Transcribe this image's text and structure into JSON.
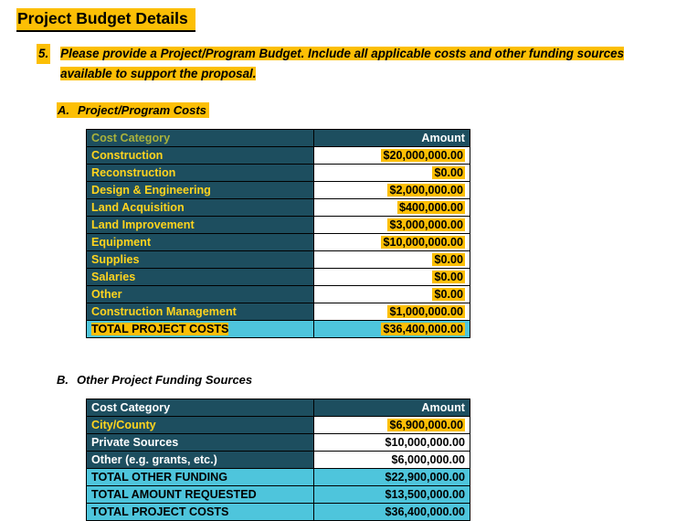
{
  "colors": {
    "highlight_gold": "#fcbf05",
    "dark_teal": "#1d4e5f",
    "total_cyan": "#4ec5dc",
    "label_yellow": "#ffd41e",
    "header_olive": "#a9b23c"
  },
  "page": {
    "title": "Project Budget Details"
  },
  "question": {
    "number": "5.",
    "text": "Please provide a Project/Program Budget. Include all applicable costs and other funding sources available to support the proposal."
  },
  "section_a": {
    "label": "A.",
    "title": "Project/Program Costs",
    "table": {
      "header_category": "Cost Category",
      "header_amount": "Amount",
      "rows": [
        {
          "category": "Construction",
          "amount": "$20,000,000.00"
        },
        {
          "category": "Reconstruction",
          "amount": "$0.00"
        },
        {
          "category": "Design & Engineering",
          "amount": "$2,000,000.00"
        },
        {
          "category": "Land Acquisition",
          "amount": "$400,000.00"
        },
        {
          "category": "Land Improvement",
          "amount": "$3,000,000.00"
        },
        {
          "category": "Equipment",
          "amount": "$10,000,000.00"
        },
        {
          "category": "Supplies",
          "amount": "$0.00"
        },
        {
          "category": "Salaries",
          "amount": "$0.00"
        },
        {
          "category": "Other",
          "amount": "$0.00"
        },
        {
          "category": "Construction Management",
          "amount": "$1,000,000.00"
        }
      ],
      "total": {
        "category": "TOTAL PROJECT COSTS",
        "amount": "$36,400,000.00"
      }
    }
  },
  "section_b": {
    "label": "B.",
    "title": "Other Project Funding Sources",
    "table": {
      "header_category": "Cost Category",
      "header_amount": "Amount",
      "rows": [
        {
          "category": "City/County",
          "amount": "$6,900,000.00"
        },
        {
          "category": "Private Sources",
          "amount": "$10,000,000.00"
        },
        {
          "category": "Other (e.g. grants, etc.)",
          "amount": "$6,000,000.00"
        }
      ],
      "totals": [
        {
          "category": "TOTAL OTHER FUNDING",
          "amount": "$22,900,000.00"
        },
        {
          "category": "TOTAL AMOUNT REQUESTED",
          "amount": "$13,500,000.00"
        },
        {
          "category": "TOTAL PROJECT COSTS",
          "amount": "$36,400,000.00"
        }
      ]
    }
  }
}
